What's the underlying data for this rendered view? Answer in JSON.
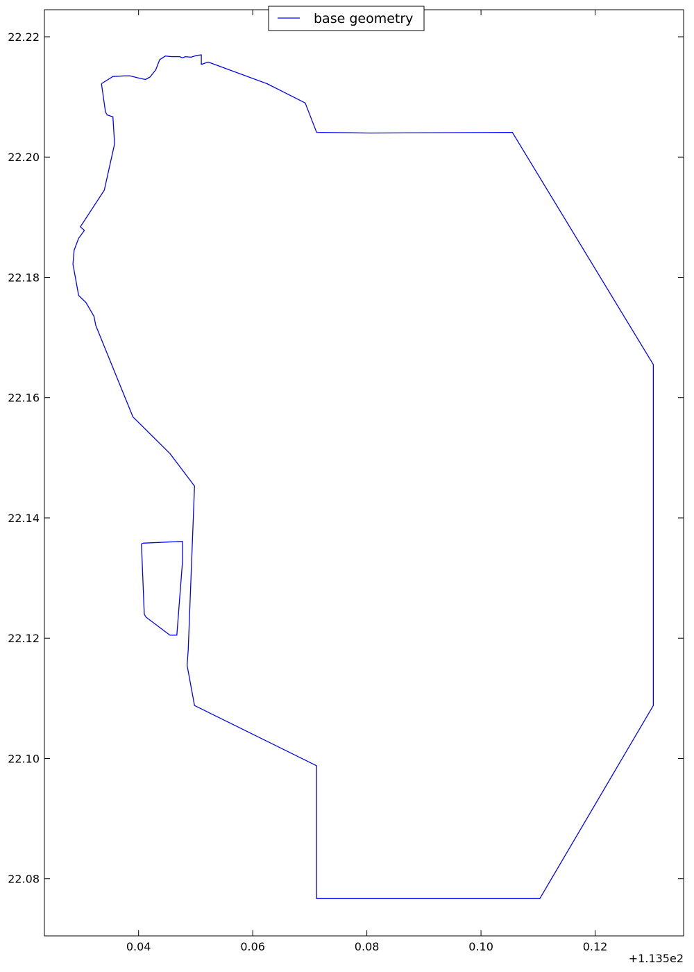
{
  "chart_data": {
    "type": "line",
    "title": "",
    "xlabel": "",
    "ylabel": "",
    "xlim": [
      113.5235,
      113.6355
    ],
    "ylim": [
      22.0705,
      22.2245
    ],
    "grid": false,
    "legend_position": "top-center",
    "x_ticks": [
      {
        "value": 113.54,
        "label": "0.04"
      },
      {
        "value": 113.56,
        "label": "0.06"
      },
      {
        "value": 113.58,
        "label": "0.08"
      },
      {
        "value": 113.6,
        "label": "0.10"
      },
      {
        "value": 113.62,
        "label": "0.12"
      }
    ],
    "x_offset_label": "+1.135e2",
    "y_ticks": [
      {
        "value": 22.08,
        "label": "22.08"
      },
      {
        "value": 22.1,
        "label": "22.10"
      },
      {
        "value": 22.12,
        "label": "22.12"
      },
      {
        "value": 22.14,
        "label": "22.14"
      },
      {
        "value": 22.16,
        "label": "22.16"
      },
      {
        "value": 22.18,
        "label": "22.18"
      },
      {
        "value": 22.2,
        "label": "22.20"
      },
      {
        "value": 22.22,
        "label": "22.22"
      }
    ],
    "series": [
      {
        "name": "base geometry",
        "color": "#0000ff",
        "x": [
          113.5335,
          113.5355,
          113.5375,
          113.5385,
          113.5402,
          113.5412,
          113.542,
          113.543,
          113.5437,
          113.5447,
          113.5458,
          113.5472,
          113.5477,
          113.5482,
          113.5492,
          113.5502,
          113.551,
          113.551,
          113.5522,
          113.5625,
          113.5692,
          113.5712,
          113.5805,
          113.6055,
          113.6302,
          113.6302,
          113.6103,
          113.5712,
          113.5712,
          113.5498,
          113.5485,
          113.5487,
          113.5498,
          113.5455,
          113.539,
          113.5325,
          113.5322,
          113.5308,
          113.5295,
          113.5285,
          113.5287,
          113.5295,
          113.5305,
          113.5298,
          113.534,
          113.5358,
          113.5355,
          113.5345,
          113.5342,
          113.5335
        ],
        "y": [
          22.2122,
          22.2134,
          22.2135,
          22.2135,
          22.2131,
          22.2129,
          22.2133,
          22.2145,
          22.2162,
          22.2168,
          22.2167,
          22.2167,
          22.2165,
          22.2167,
          22.2166,
          22.2169,
          22.217,
          22.2154,
          22.2158,
          22.2122,
          22.209,
          22.2041,
          22.204,
          22.2041,
          22.1655,
          22.1088,
          22.0767,
          22.0767,
          22.0988,
          22.1088,
          22.1155,
          22.118,
          22.1453,
          22.1507,
          22.1568,
          22.172,
          22.1735,
          22.1758,
          22.177,
          22.1822,
          22.1845,
          22.1865,
          22.1878,
          22.1884,
          22.1945,
          22.2022,
          22.2067,
          22.207,
          22.2075,
          22.2122
        ]
      },
      {
        "name": "",
        "color": "#0000ff",
        "x": [
          113.5405,
          113.5408,
          113.5477,
          113.5477,
          113.5467,
          113.5462,
          113.5455,
          113.5413,
          113.541,
          113.5405
        ],
        "y": [
          22.1357,
          22.1358,
          22.1361,
          22.1328,
          22.1205,
          22.1205,
          22.1205,
          22.1235,
          22.124,
          22.1357
        ]
      }
    ],
    "legend": [
      {
        "label": "base geometry",
        "color": "#0000ff"
      }
    ]
  }
}
